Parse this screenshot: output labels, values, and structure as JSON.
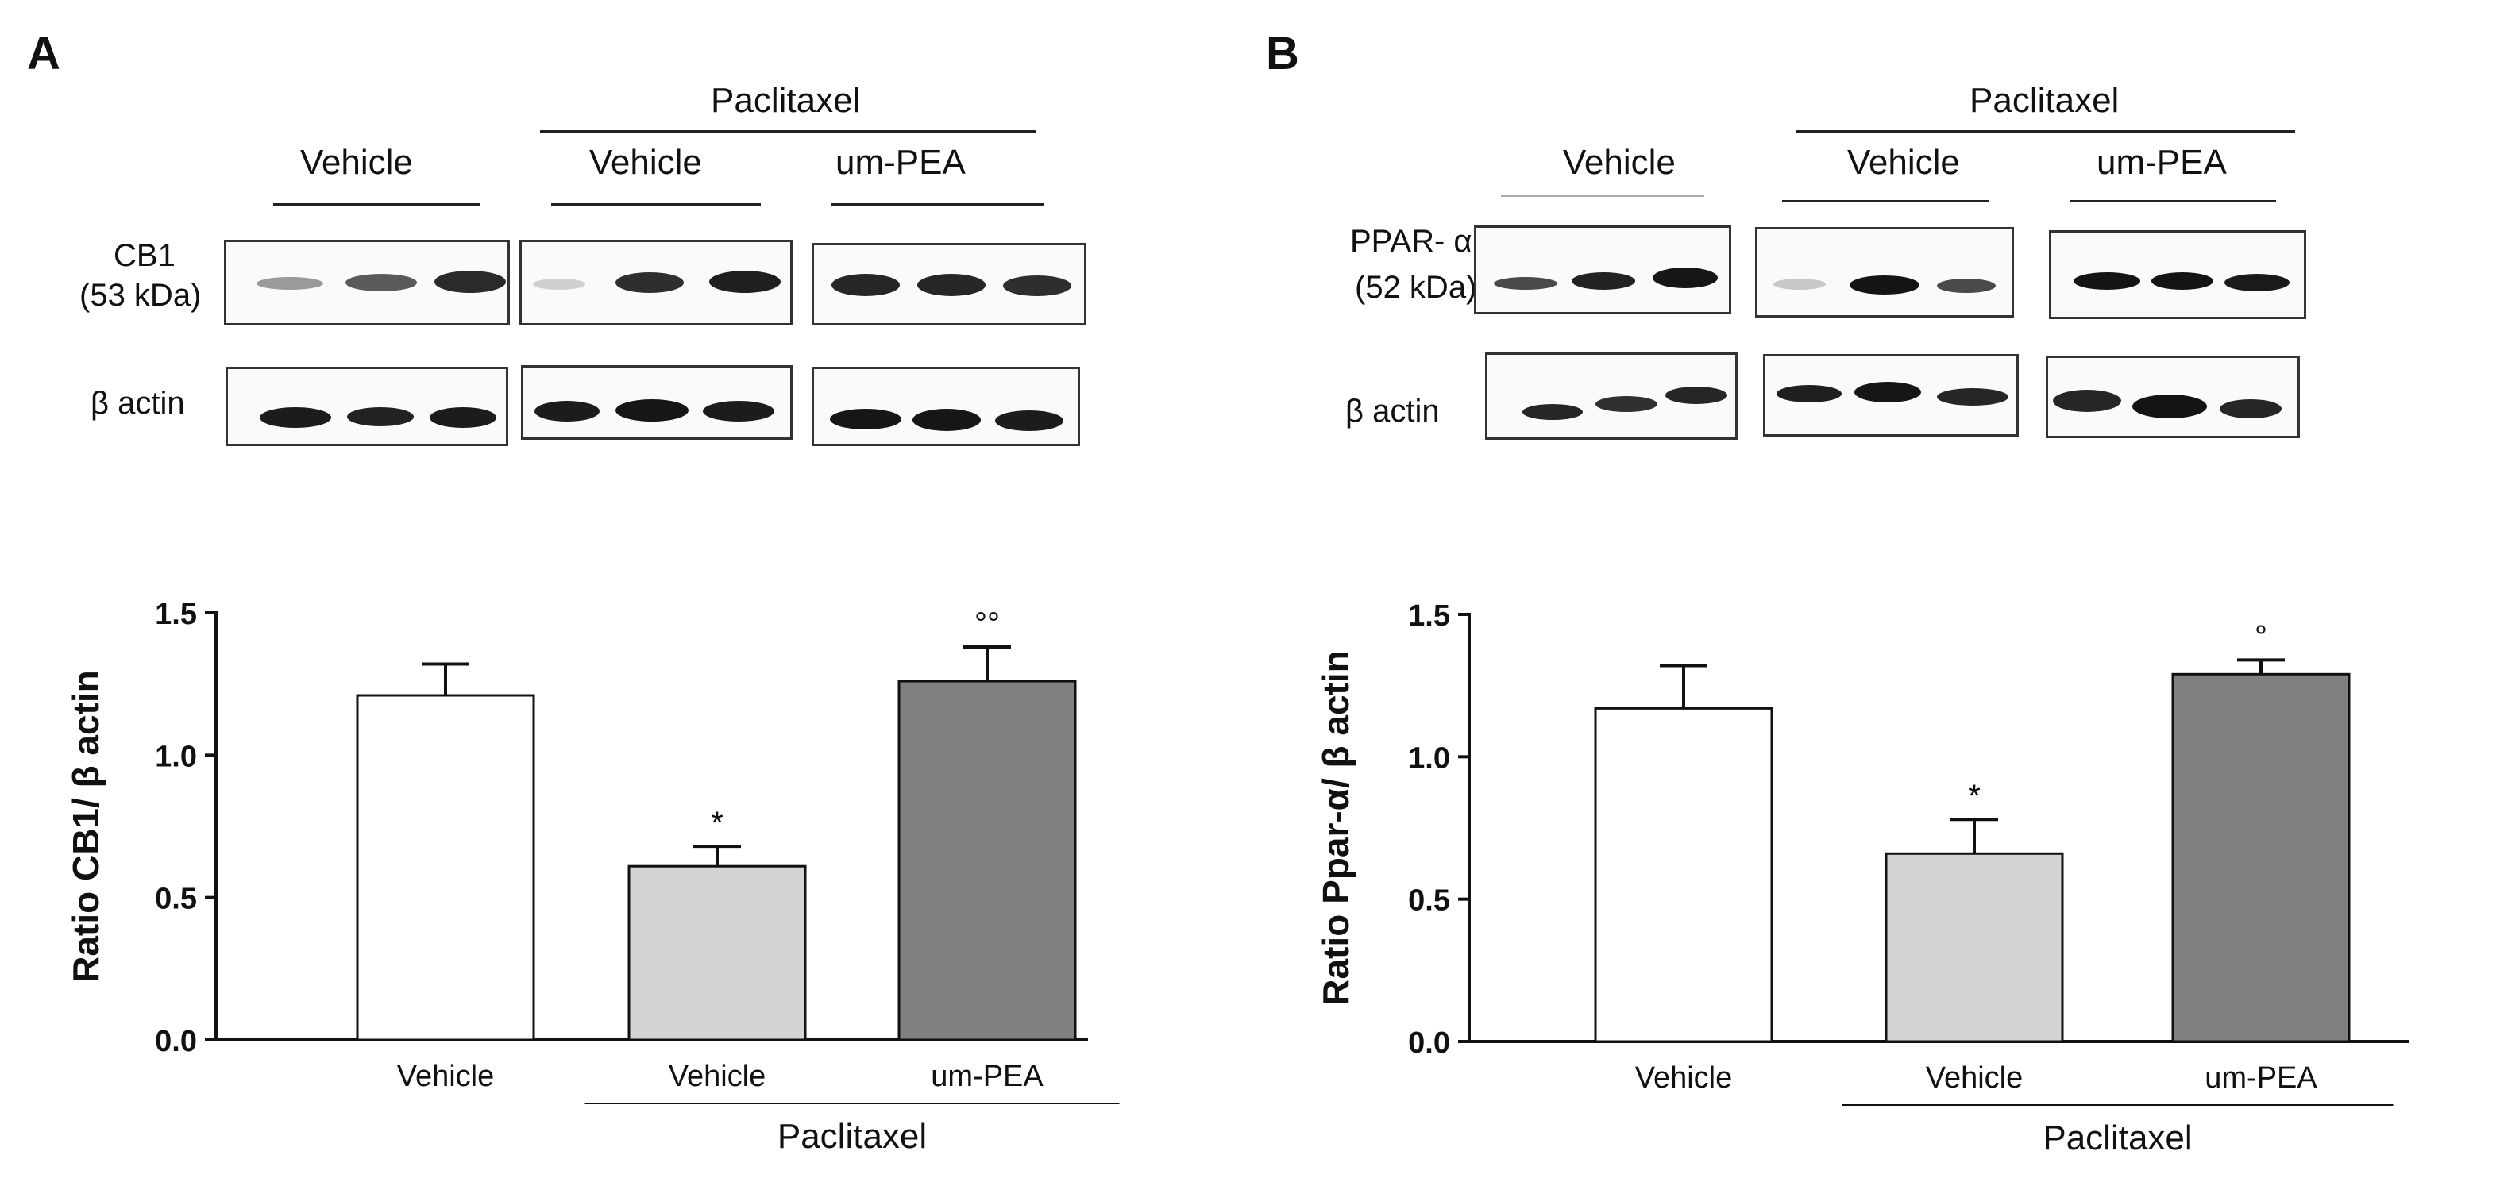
{
  "panels": [
    {
      "letter": "A",
      "blot": {
        "group_header": "Paclitaxel",
        "lane_groups": [
          "Vehicle",
          "Vehicle",
          "um-PEA"
        ],
        "target_label_line1": "CB1",
        "target_label_line2": "(53 kDa)",
        "loading_label": "β actin"
      },
      "chart_data": {
        "type": "bar",
        "categories": [
          "Vehicle",
          "Vehicle",
          "um-PEA"
        ],
        "values": [
          1.21,
          0.61,
          1.26
        ],
        "errors": [
          0.11,
          0.07,
          0.12
        ],
        "bar_colors": [
          "#ffffff",
          "#d3d3d3",
          "#808080"
        ],
        "annotations": [
          "",
          "*",
          "°°"
        ],
        "group_label": "Paclitaxel",
        "ylabel": "Ratio CB1/ β actin",
        "xlabel": "",
        "ylim": [
          0.0,
          1.5
        ],
        "yticks": [
          "0.0",
          "0.5",
          "1.0",
          "1.5"
        ],
        "grid": false
      }
    },
    {
      "letter": "B",
      "blot": {
        "group_header": "Paclitaxel",
        "lane_groups": [
          "Vehicle",
          "Vehicle",
          "um-PEA"
        ],
        "target_label_line1": "PPAR- α",
        "target_label_line2": "(52 kDa)",
        "loading_label": "β actin"
      },
      "chart_data": {
        "type": "bar",
        "categories": [
          "Vehicle",
          "Vehicle",
          "um-PEA"
        ],
        "values": [
          1.17,
          0.66,
          1.29
        ],
        "errors": [
          0.15,
          0.12,
          0.05
        ],
        "bar_colors": [
          "#ffffff",
          "#d3d3d3",
          "#808080"
        ],
        "annotations": [
          "",
          "*",
          "°"
        ],
        "group_label": "Paclitaxel",
        "ylabel": "Ratio Ppar-α/ β actin",
        "xlabel": "",
        "ylim": [
          0.0,
          1.5
        ],
        "yticks": [
          "0.0",
          "0.5",
          "1.0",
          "1.5"
        ],
        "grid": false
      }
    }
  ]
}
